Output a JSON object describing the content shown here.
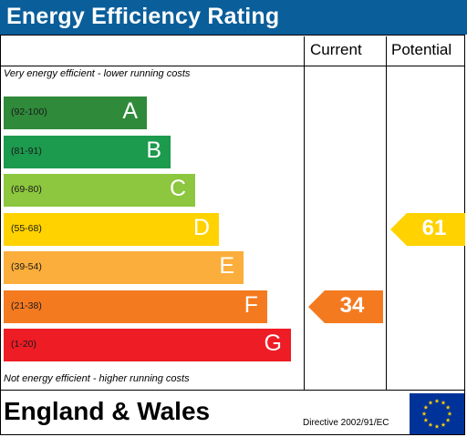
{
  "title": "Energy Efficiency Rating",
  "columns": {
    "current": "Current",
    "potential": "Potential"
  },
  "top_note": "Very energy efficient - lower running costs",
  "bottom_note": "Not energy efficient - higher running costs",
  "bands": [
    {
      "range": "(92-100)",
      "letter": "A",
      "color": "#2f8a3a"
    },
    {
      "range": "(81-91)",
      "letter": "B",
      "color": "#1c9a4d"
    },
    {
      "range": "(69-80)",
      "letter": "C",
      "color": "#8dc63f"
    },
    {
      "range": "(55-68)",
      "letter": "D",
      "color": "#ffd200"
    },
    {
      "range": "(39-54)",
      "letter": "E",
      "color": "#fbae3b"
    },
    {
      "range": "(21-38)",
      "letter": "F",
      "color": "#f47a20"
    },
    {
      "range": "(1-20)",
      "letter": "G",
      "color": "#ee1c25"
    }
  ],
  "current_rating": {
    "value": "34",
    "band": "F",
    "color": "#f47a20"
  },
  "potential_rating": {
    "value": "61",
    "band": "D",
    "color": "#ffd200"
  },
  "footer": {
    "region": "England & Wales",
    "directive": "Directive 2002/91/EC"
  },
  "flag_icon": "eu-flag-icon"
}
